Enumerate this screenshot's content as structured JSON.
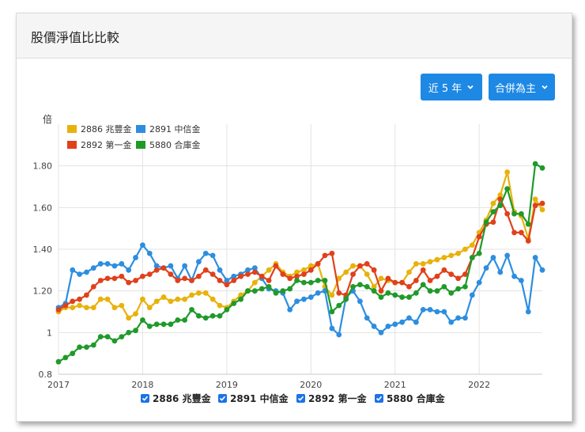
{
  "header": {
    "title": "股價淨值比比較"
  },
  "controls": {
    "range_label": "近 5 年",
    "mode_label": "合併為主"
  },
  "checkboxes": [
    {
      "label": "2886 兆豐金",
      "checked": true
    },
    {
      "label": "2891 中信金",
      "checked": true
    },
    {
      "label": "2892 第一金",
      "checked": true
    },
    {
      "label": "5880 合庫金",
      "checked": true
    }
  ],
  "chart_data": {
    "type": "line",
    "title": "",
    "ylabel": "倍",
    "xlabel": "",
    "ylim": [
      0.8,
      2.0
    ],
    "yticks": [
      0.8,
      1,
      1.2,
      1.4,
      1.6,
      1.8
    ],
    "ytick_labels": [
      "0.8",
      "1",
      "1.20",
      "1.40",
      "1.60",
      "1.80"
    ],
    "xlim": [
      "2017-01",
      "2022-10"
    ],
    "xticks": [
      "2017",
      "2018",
      "2019",
      "2020",
      "2021",
      "2022"
    ],
    "grid": true,
    "legend_position": "top-left",
    "x": [
      "2017-01",
      "2017-02",
      "2017-03",
      "2017-04",
      "2017-05",
      "2017-06",
      "2017-07",
      "2017-08",
      "2017-09",
      "2017-10",
      "2017-11",
      "2017-12",
      "2018-01",
      "2018-02",
      "2018-03",
      "2018-04",
      "2018-05",
      "2018-06",
      "2018-07",
      "2018-08",
      "2018-09",
      "2018-10",
      "2018-11",
      "2018-12",
      "2019-01",
      "2019-02",
      "2019-03",
      "2019-04",
      "2019-05",
      "2019-06",
      "2019-07",
      "2019-08",
      "2019-09",
      "2019-10",
      "2019-11",
      "2019-12",
      "2020-01",
      "2020-02",
      "2020-03",
      "2020-04",
      "2020-05",
      "2020-06",
      "2020-07",
      "2020-08",
      "2020-09",
      "2020-10",
      "2020-11",
      "2020-12",
      "2021-01",
      "2021-02",
      "2021-03",
      "2021-04",
      "2021-05",
      "2021-06",
      "2021-07",
      "2021-08",
      "2021-09",
      "2021-10",
      "2021-11",
      "2021-12",
      "2022-01",
      "2022-02",
      "2022-03",
      "2022-04",
      "2022-05",
      "2022-06",
      "2022-07",
      "2022-08",
      "2022-09",
      "2022-10"
    ],
    "series": [
      {
        "name": "2886 兆豐金",
        "color": "#e8b20c",
        "values": [
          1.1,
          1.12,
          1.12,
          1.13,
          1.12,
          1.12,
          1.16,
          1.16,
          1.12,
          1.13,
          1.07,
          1.09,
          1.16,
          1.12,
          1.15,
          1.17,
          1.15,
          1.16,
          1.16,
          1.18,
          1.19,
          1.19,
          1.16,
          1.13,
          1.12,
          1.15,
          1.18,
          1.2,
          1.24,
          1.27,
          1.3,
          1.33,
          1.29,
          1.27,
          1.29,
          1.3,
          1.32,
          1.33,
          1.22,
          1.18,
          1.26,
          1.29,
          1.32,
          1.32,
          1.28,
          1.22,
          1.26,
          1.25,
          1.24,
          1.24,
          1.29,
          1.33,
          1.33,
          1.34,
          1.35,
          1.36,
          1.37,
          1.38,
          1.4,
          1.42,
          1.48,
          1.54,
          1.62,
          1.66,
          1.77,
          1.58,
          1.56,
          1.45,
          1.64,
          1.59
        ]
      },
      {
        "name": "2891 中信金",
        "color": "#2d8ee0",
        "values": [
          1.12,
          1.14,
          1.3,
          1.28,
          1.29,
          1.31,
          1.33,
          1.33,
          1.32,
          1.33,
          1.3,
          1.36,
          1.42,
          1.38,
          1.32,
          1.31,
          1.32,
          1.26,
          1.32,
          1.25,
          1.34,
          1.38,
          1.37,
          1.3,
          1.25,
          1.27,
          1.28,
          1.3,
          1.31,
          1.26,
          1.21,
          1.2,
          1.19,
          1.11,
          1.15,
          1.16,
          1.17,
          1.19,
          1.2,
          1.02,
          0.99,
          1.17,
          1.2,
          1.15,
          1.07,
          1.03,
          1.0,
          1.03,
          1.04,
          1.05,
          1.07,
          1.05,
          1.11,
          1.11,
          1.1,
          1.1,
          1.05,
          1.07,
          1.07,
          1.18,
          1.24,
          1.31,
          1.36,
          1.29,
          1.37,
          1.27,
          1.25,
          1.1,
          1.36,
          1.3
        ]
      },
      {
        "name": "2892 第一金",
        "color": "#e0401a",
        "values": [
          1.11,
          1.13,
          1.15,
          1.16,
          1.18,
          1.22,
          1.25,
          1.26,
          1.26,
          1.27,
          1.24,
          1.25,
          1.27,
          1.28,
          1.3,
          1.31,
          1.28,
          1.25,
          1.26,
          1.25,
          1.27,
          1.3,
          1.28,
          1.25,
          1.23,
          1.25,
          1.27,
          1.28,
          1.29,
          1.27,
          1.25,
          1.32,
          1.28,
          1.26,
          1.27,
          1.28,
          1.3,
          1.33,
          1.37,
          1.38,
          1.19,
          1.18,
          1.28,
          1.32,
          1.33,
          1.3,
          1.2,
          1.26,
          1.24,
          1.24,
          1.22,
          1.25,
          1.3,
          1.25,
          1.27,
          1.3,
          1.28,
          1.26,
          1.28,
          1.36,
          1.46,
          1.52,
          1.53,
          1.64,
          1.57,
          1.48,
          1.48,
          1.44,
          1.61,
          1.62
        ]
      },
      {
        "name": "5880 合庫金",
        "color": "#1f9a2a",
        "values": [
          0.86,
          0.88,
          0.9,
          0.93,
          0.93,
          0.94,
          0.98,
          0.98,
          0.96,
          0.98,
          1.0,
          1.01,
          1.06,
          1.03,
          1.04,
          1.04,
          1.04,
          1.06,
          1.06,
          1.11,
          1.08,
          1.07,
          1.08,
          1.08,
          1.11,
          1.14,
          1.16,
          1.2,
          1.2,
          1.21,
          1.22,
          1.19,
          1.2,
          1.21,
          1.25,
          1.24,
          1.24,
          1.25,
          1.25,
          1.1,
          1.13,
          1.16,
          1.22,
          1.23,
          1.22,
          1.2,
          1.17,
          1.19,
          1.18,
          1.17,
          1.17,
          1.19,
          1.23,
          1.2,
          1.2,
          1.22,
          1.19,
          1.21,
          1.22,
          1.36,
          1.38,
          1.53,
          1.58,
          1.61,
          1.69,
          1.57,
          1.57,
          1.52,
          1.81,
          1.79
        ]
      }
    ]
  }
}
